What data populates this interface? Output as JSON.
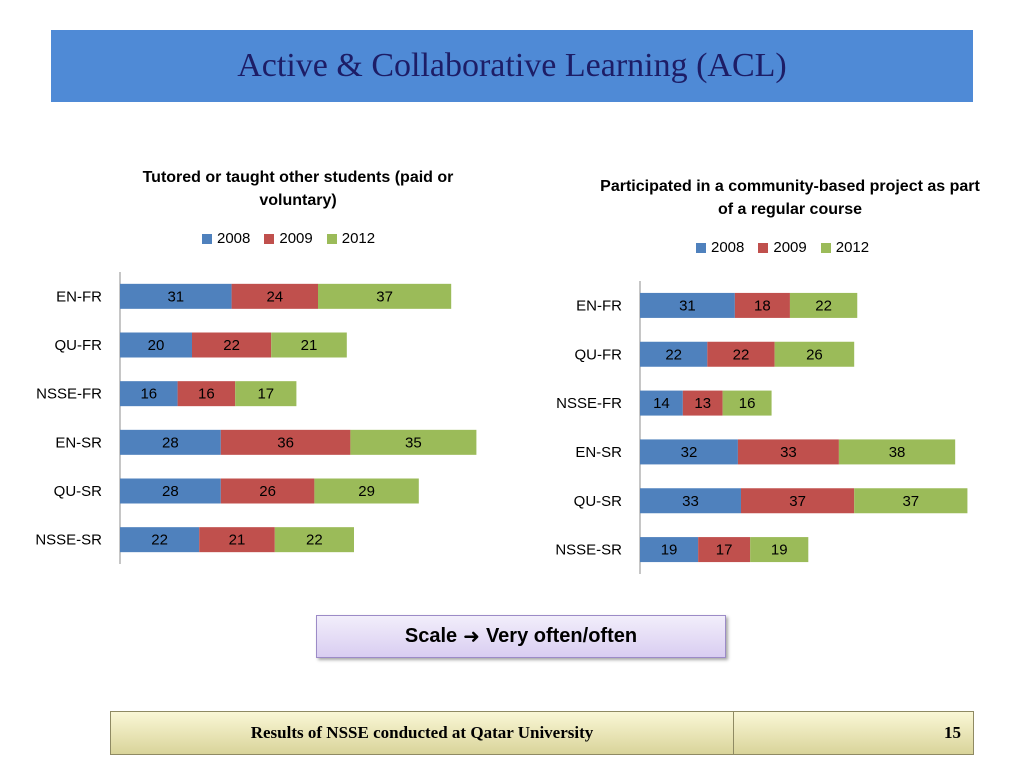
{
  "slide_title": "Active & Collaborative Learning (ACL)",
  "scale": {
    "label": "Scale",
    "arrow_icon": "arrow-right-icon",
    "value": "Very often/often"
  },
  "footer": {
    "text": "Results of NSSE conducted at Qatar University",
    "page_number": "15"
  },
  "colors": {
    "2008": "#4f81bd",
    "2009": "#c0504d",
    "2012": "#9bbb59"
  },
  "chart_data": [
    {
      "type": "bar",
      "orientation": "horizontal",
      "stacked": true,
      "title": "Tutored or taught other students (paid or voluntary)",
      "legend_position": "top",
      "categories": [
        "EN-FR",
        "QU-FR",
        "NSSE-FR",
        "EN-SR",
        "QU-SR",
        "NSSE-SR"
      ],
      "series": [
        {
          "name": "2008",
          "values": [
            31,
            20,
            16,
            28,
            28,
            22
          ]
        },
        {
          "name": "2009",
          "values": [
            24,
            22,
            16,
            36,
            26,
            21
          ]
        },
        {
          "name": "2012",
          "values": [
            37,
            21,
            17,
            35,
            29,
            22
          ]
        }
      ]
    },
    {
      "type": "bar",
      "orientation": "horizontal",
      "stacked": true,
      "title": "Participated in a community-based project as part of a regular course",
      "legend_position": "top",
      "categories": [
        "EN-FR",
        "QU-FR",
        "NSSE-FR",
        "EN-SR",
        "QU-SR",
        "NSSE-SR"
      ],
      "series": [
        {
          "name": "2008",
          "values": [
            31,
            22,
            14,
            32,
            33,
            19
          ]
        },
        {
          "name": "2009",
          "values": [
            18,
            22,
            13,
            33,
            37,
            17
          ]
        },
        {
          "name": "2012",
          "values": [
            22,
            26,
            16,
            38,
            37,
            19
          ]
        }
      ]
    }
  ]
}
